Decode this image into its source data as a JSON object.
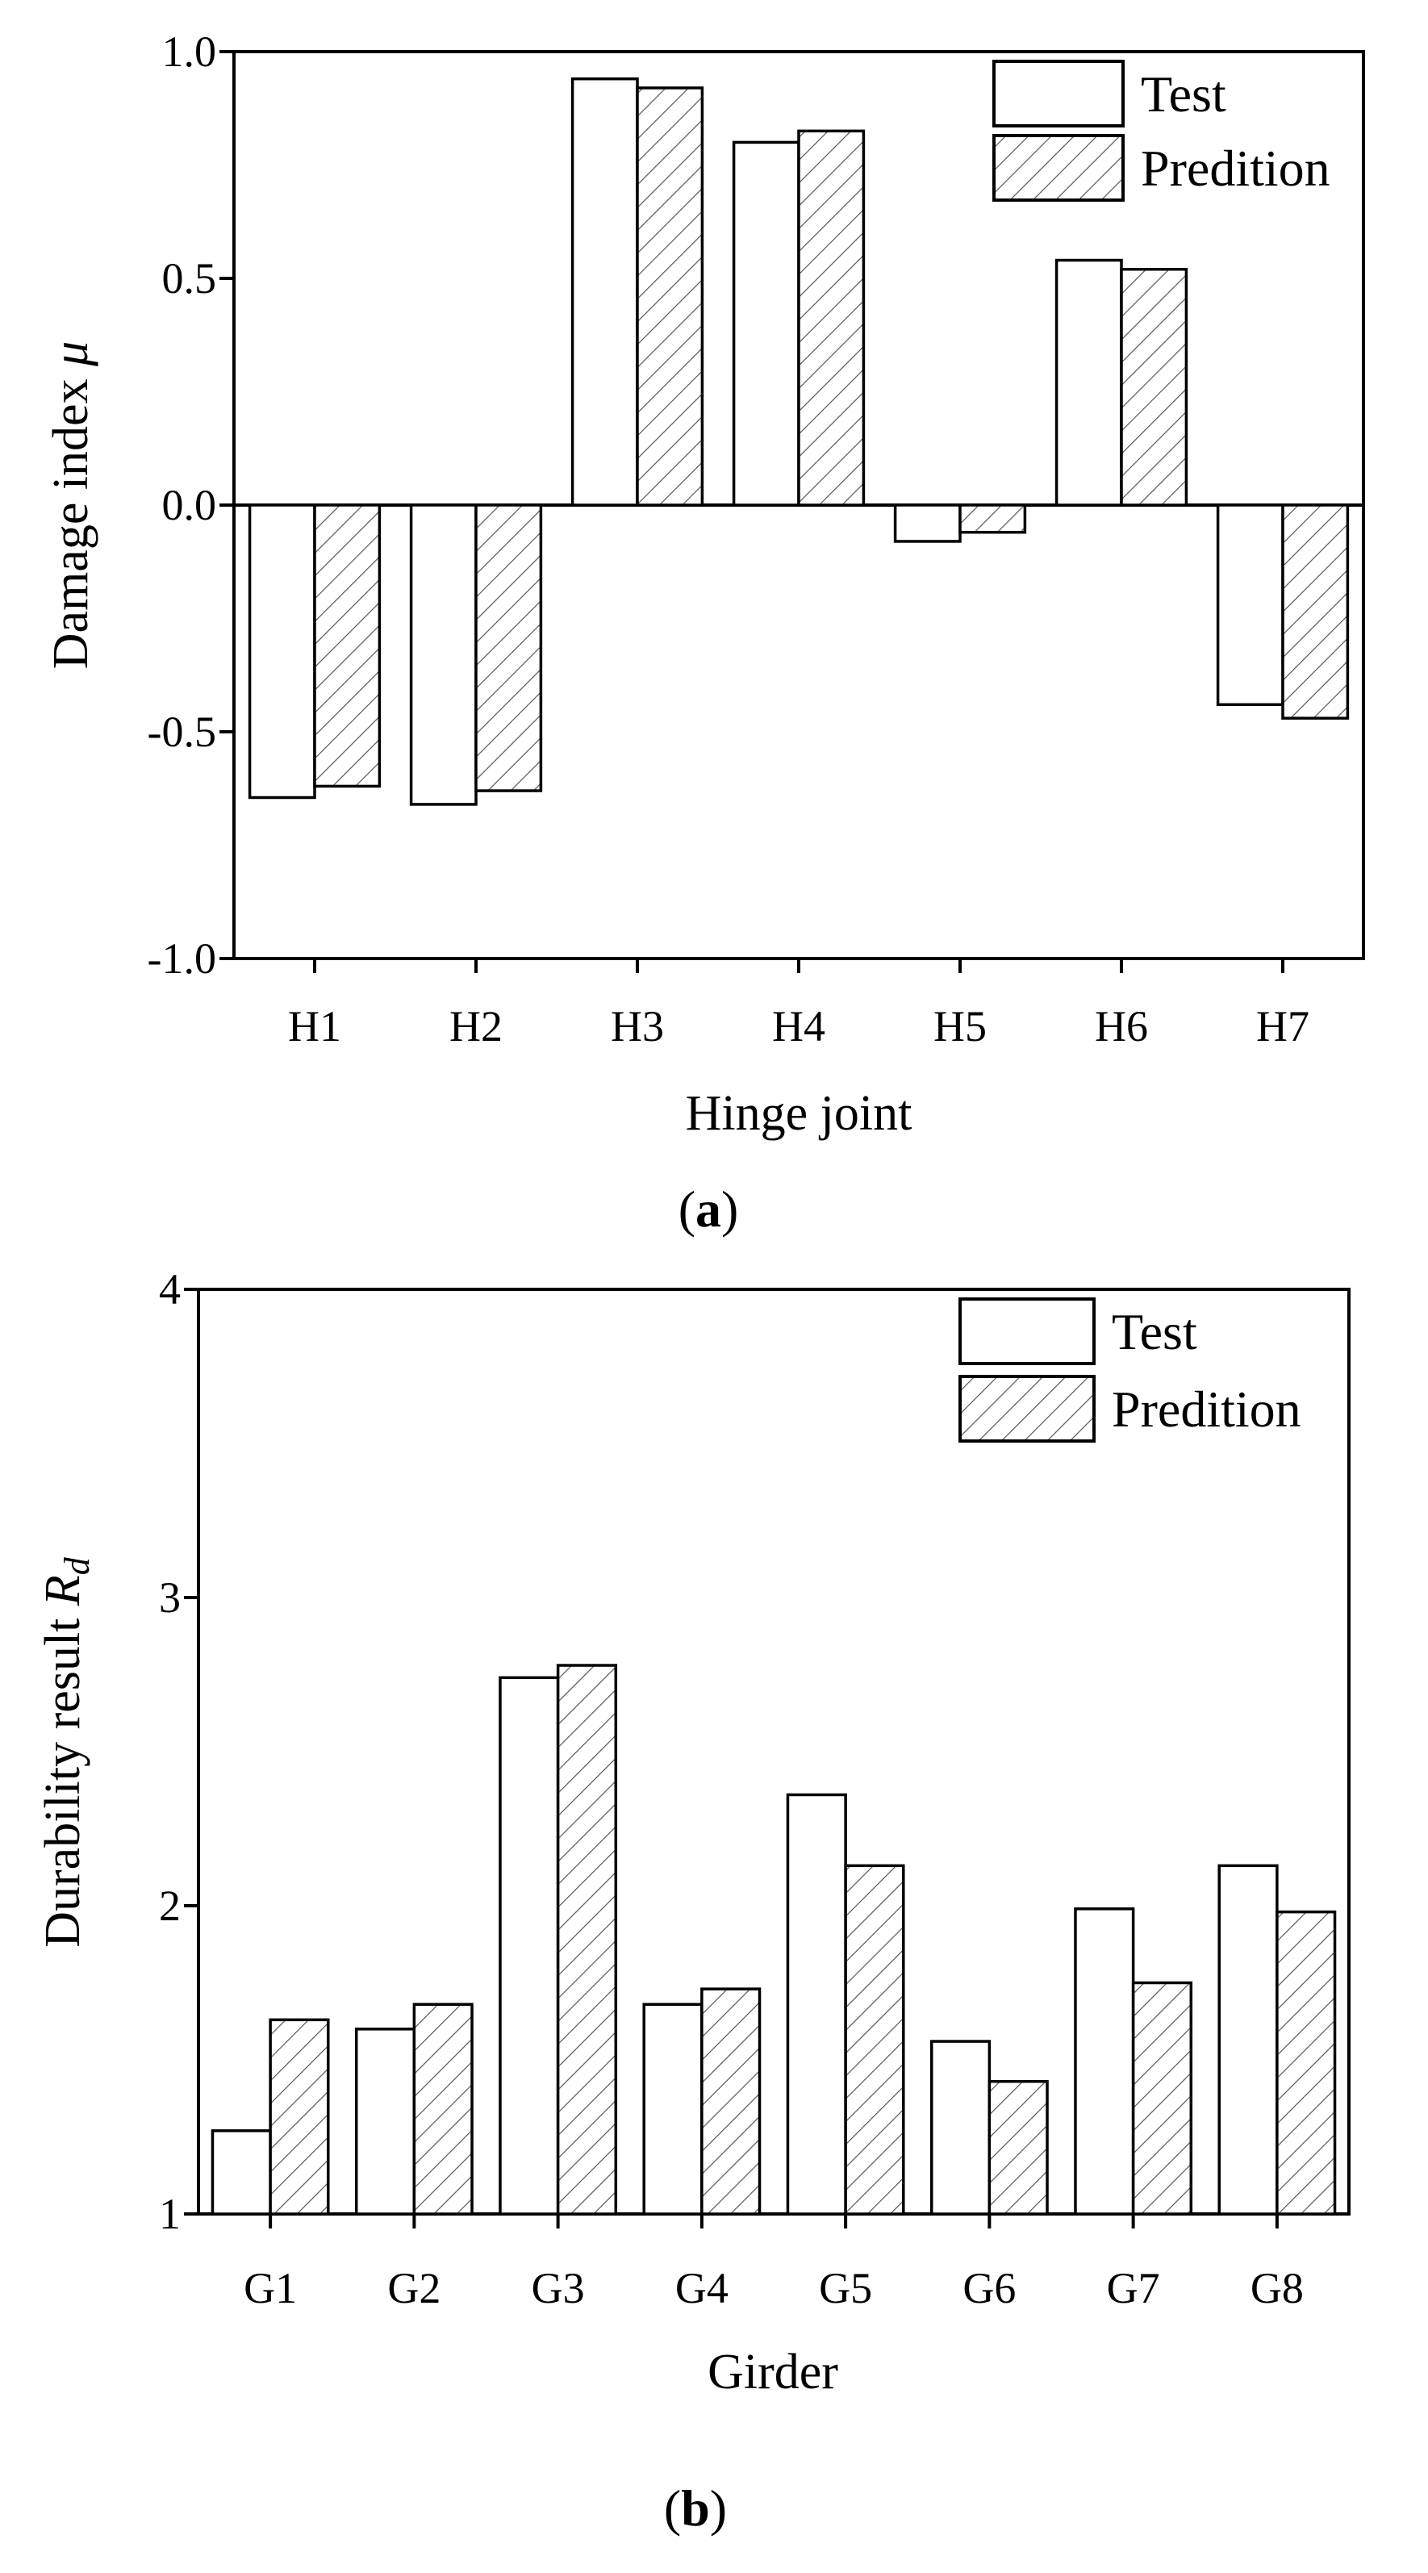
{
  "chart_data": [
    {
      "type": "bar",
      "panel": "a",
      "categories": [
        "H1",
        "H2",
        "H3",
        "H4",
        "H5",
        "H6",
        "H7"
      ],
      "series": [
        {
          "name": "Test",
          "pattern": "none",
          "values": [
            -0.645,
            -0.66,
            0.94,
            0.8,
            -0.08,
            0.54,
            -0.44
          ]
        },
        {
          "name": "Predition",
          "pattern": "hatch",
          "values": [
            -0.62,
            -0.63,
            0.92,
            0.825,
            -0.06,
            0.52,
            -0.47
          ]
        }
      ],
      "xlabel": "Hinge joint",
      "ylabel": "Damage index μ",
      "ylabel_text": "Damage index ",
      "ylabel_symbol": "μ",
      "ylim": [
        -1.0,
        1.0
      ],
      "yticks": [
        -1.0,
        -0.5,
        0.0,
        0.5,
        1.0
      ],
      "ytick_labels": [
        "-1.0",
        "-0.5",
        "0.0",
        "0.5",
        "1.0"
      ],
      "baseline": 0,
      "legend": {
        "position": "top-right",
        "entries": [
          "Test",
          "Predition"
        ]
      },
      "grid": false,
      "caption": {
        "open": "(",
        "letter": "a",
        "close": ")"
      }
    },
    {
      "type": "bar",
      "panel": "b",
      "categories": [
        "G1",
        "G2",
        "G3",
        "G4",
        "G5",
        "G6",
        "G7",
        "G8"
      ],
      "series": [
        {
          "name": "Test",
          "pattern": "none",
          "values": [
            1.27,
            1.6,
            2.74,
            1.68,
            2.36,
            1.56,
            1.99,
            2.13
          ]
        },
        {
          "name": "Predition",
          "pattern": "hatch",
          "values": [
            1.63,
            1.68,
            2.78,
            1.73,
            2.13,
            1.43,
            1.75,
            1.98
          ]
        }
      ],
      "xlabel": "Girder",
      "ylabel": "Durability result Rd",
      "ylabel_text": "Durability result ",
      "ylabel_symbol": "R",
      "ylabel_sub": "d",
      "ylim": [
        1,
        4
      ],
      "yticks": [
        1,
        2,
        3,
        4
      ],
      "ytick_labels": [
        "1",
        "2",
        "3",
        "4"
      ],
      "baseline": 1,
      "legend": {
        "position": "top-right",
        "entries": [
          "Test",
          "Predition"
        ]
      },
      "grid": false,
      "caption": {
        "open": "(",
        "letter": "b",
        "close": ")"
      }
    }
  ]
}
